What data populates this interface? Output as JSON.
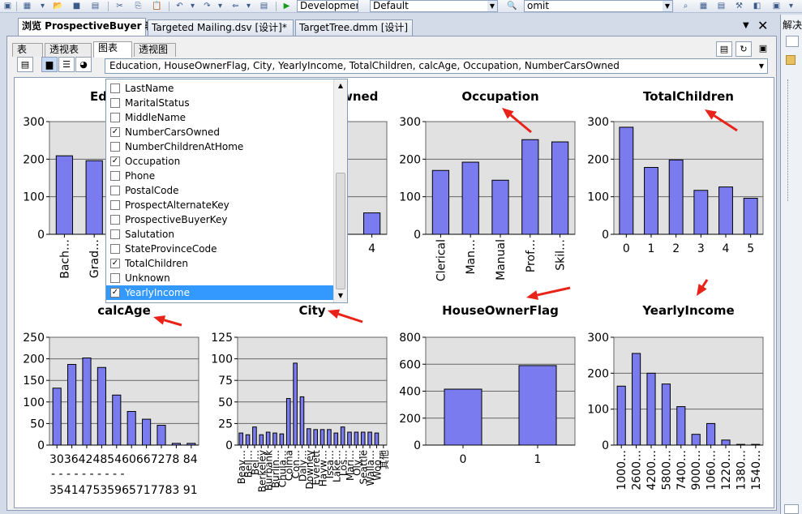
{
  "toolbar": {
    "config_combo": "Developmer",
    "platform_combo": "Default",
    "find_combo": "omit"
  },
  "doc_tabs": [
    {
      "label": "浏览 ProspectiveBuyer 表"
    },
    {
      "label": "Targeted Mailing.dsv [设计]*"
    },
    {
      "label": "TargetTree.dmm [设计]"
    }
  ],
  "right_pane": {
    "title": "解决"
  },
  "view_tabs": [
    {
      "label": "表"
    },
    {
      "label": "透视表"
    },
    {
      "label": "图表"
    },
    {
      "label": "透视图"
    }
  ],
  "column_selector": {
    "value": "Education, HouseOwnerFlag, City, YearlyIncome, TotalChildren, calcAge, Occupation, NumberCarsOwned"
  },
  "dropdown": {
    "items": [
      {
        "label": "LastName",
        "checked": false
      },
      {
        "label": "MaritalStatus",
        "checked": false
      },
      {
        "label": "MiddleName",
        "checked": false
      },
      {
        "label": "NumberCarsOwned",
        "checked": true
      },
      {
        "label": "NumberChildrenAtHome",
        "checked": false
      },
      {
        "label": "Occupation",
        "checked": true
      },
      {
        "label": "Phone",
        "checked": false
      },
      {
        "label": "PostalCode",
        "checked": false
      },
      {
        "label": "ProspectAlternateKey",
        "checked": false
      },
      {
        "label": "ProspectiveBuyerKey",
        "checked": false
      },
      {
        "label": "Salutation",
        "checked": false
      },
      {
        "label": "StateProvinceCode",
        "checked": false
      },
      {
        "label": "TotalChildren",
        "checked": true
      },
      {
        "label": "Unknown",
        "checked": false
      },
      {
        "label": "YearlyIncome",
        "checked": true,
        "selected": true
      }
    ]
  },
  "colors": {
    "bar": "#7b7bf0",
    "plot_bg": "#e1e1e1",
    "selection": "#3399ff",
    "arrow": "#e8231a"
  },
  "chart_data": [
    {
      "type": "bar",
      "title": "Education",
      "categories": [
        "Bach…",
        "Grad…",
        "",
        "",
        ""
      ],
      "values": [
        209,
        196,
        0,
        0,
        0
      ],
      "ylim": [
        0,
        300
      ],
      "yticks": [
        "0",
        "100",
        "200",
        "300"
      ]
    },
    {
      "type": "bar",
      "title": "NumberCarsOwned",
      "categories": [
        "0",
        "1",
        "2",
        "3",
        "4"
      ],
      "values": [
        0,
        0,
        0,
        0,
        57
      ],
      "ylim": [
        0,
        300
      ],
      "yticks": [
        "0",
        "100",
        "200",
        "300"
      ]
    },
    {
      "type": "bar",
      "title": "Occupation",
      "categories": [
        "Clerical",
        "Man…",
        "Manual",
        "Prof…",
        "Skil…"
      ],
      "values": [
        170,
        192,
        144,
        252,
        246
      ],
      "ylim": [
        0,
        300
      ],
      "yticks": [
        "0",
        "100",
        "200",
        "300"
      ]
    },
    {
      "type": "bar",
      "title": "TotalChildren",
      "categories": [
        "0",
        "1",
        "2",
        "3",
        "4",
        "5"
      ],
      "values": [
        285,
        178,
        198,
        117,
        126,
        96
      ],
      "ylim": [
        0,
        300
      ],
      "yticks": [
        "0",
        "100",
        "200",
        "300"
      ]
    },
    {
      "type": "bar",
      "title": "calcAge",
      "categories": [
        "30-35",
        "36-41",
        "42-47",
        "48-53",
        "54-59",
        "60-65",
        "66-71",
        "72-77",
        "78-83",
        "84-91"
      ],
      "xtick_line1": "303642485460667278 84",
      "xtick_line2": "- - - - - - - - - -",
      "xtick_line3": "354147535965717783 91",
      "values": [
        132,
        187,
        202,
        180,
        116,
        78,
        60,
        46,
        4,
        4
      ],
      "ylim": [
        0,
        250
      ],
      "yticks": [
        "0",
        "50",
        "100",
        "150",
        "200",
        "250"
      ]
    },
    {
      "type": "bar",
      "title": "City",
      "categories": [
        "Beav…",
        "Bell…",
        "Bel…",
        "Berkeley",
        "Burbank",
        "Burlin…",
        "Chula…",
        "Colma",
        "Con…",
        "Daly…",
        "Downey",
        "Everett",
        "Hayw…",
        "Issa…",
        "Lake…",
        "Los…",
        "Mari…",
        "Oly…",
        "Seattle",
        "Walla…",
        "Woo…",
        "其他"
      ],
      "values": [
        14,
        12,
        21,
        12,
        15,
        14,
        13,
        54,
        95,
        56,
        19,
        18,
        18,
        18,
        14,
        21,
        15,
        15,
        15,
        15,
        14,
        0
      ],
      "ylim": [
        0,
        125
      ],
      "yticks": [
        "0",
        "25",
        "50",
        "75",
        "100",
        "125"
      ]
    },
    {
      "type": "bar",
      "title": "HouseOwnerFlag",
      "categories": [
        "0",
        "1"
      ],
      "values": [
        415,
        590
      ],
      "ylim": [
        0,
        800
      ],
      "yticks": [
        "0",
        "200",
        "400",
        "600",
        "800"
      ]
    },
    {
      "type": "bar",
      "title": "YearlyIncome",
      "categories": [
        "1000…",
        "2600…",
        "4200…",
        "5800…",
        "7400…",
        "9000…",
        "1060…",
        "1220…",
        "1380…",
        "1540…"
      ],
      "values": [
        164,
        255,
        200,
        170,
        107,
        30,
        60,
        14,
        2,
        2
      ],
      "ylim": [
        0,
        300
      ],
      "yticks": [
        "0",
        "100",
        "200",
        "300"
      ]
    }
  ]
}
